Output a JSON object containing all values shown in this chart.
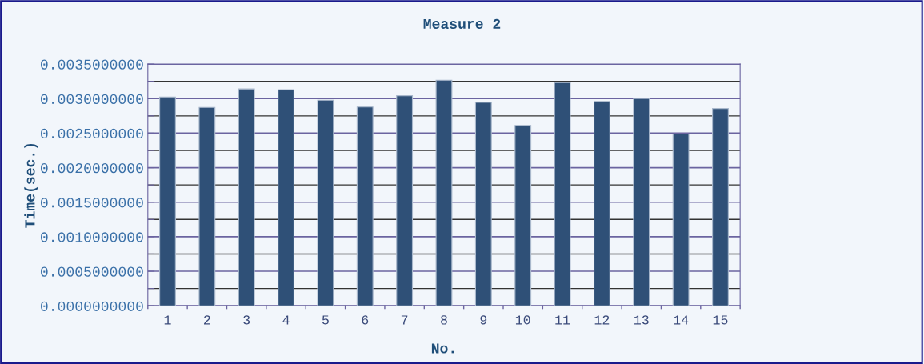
{
  "chart_data": {
    "type": "bar",
    "title": "Measure 2",
    "xlabel": "No.",
    "ylabel": "Time(sec.)",
    "categories": [
      "1",
      "2",
      "3",
      "4",
      "5",
      "6",
      "7",
      "8",
      "9",
      "10",
      "11",
      "12",
      "13",
      "14",
      "15"
    ],
    "values": [
      0.003023,
      0.002872,
      0.00314,
      0.003131,
      0.002977,
      0.002879,
      0.003042,
      0.003267,
      0.002945,
      0.002612,
      0.003233,
      0.00296,
      0.003,
      0.002488,
      0.002856
    ],
    "color": "#2f5077",
    "ylim": [
      0,
      0.0035
    ],
    "yticks": [
      {
        "value": 0,
        "label": "0.0000000000"
      },
      {
        "value": 0.00025,
        "label": null
      },
      {
        "value": 0.0005,
        "label": "0.0005000000"
      },
      {
        "value": 0.00075,
        "label": null
      },
      {
        "value": 0.001,
        "label": "0.0010000000"
      },
      {
        "value": 0.00125,
        "label": null
      },
      {
        "value": 0.0015,
        "label": "0.0015000000"
      },
      {
        "value": 0.00175,
        "label": null
      },
      {
        "value": 0.002,
        "label": "0.0020000000"
      },
      {
        "value": 0.00225,
        "label": null
      },
      {
        "value": 0.0025,
        "label": "0.0025000000"
      },
      {
        "value": 0.00275,
        "label": null
      },
      {
        "value": 0.003,
        "label": "0.0030000000"
      },
      {
        "value": 0.00325,
        "label": null
      },
      {
        "value": 0.0035,
        "label": "0.0035000000"
      }
    ],
    "grid": "y",
    "legend": false
  }
}
